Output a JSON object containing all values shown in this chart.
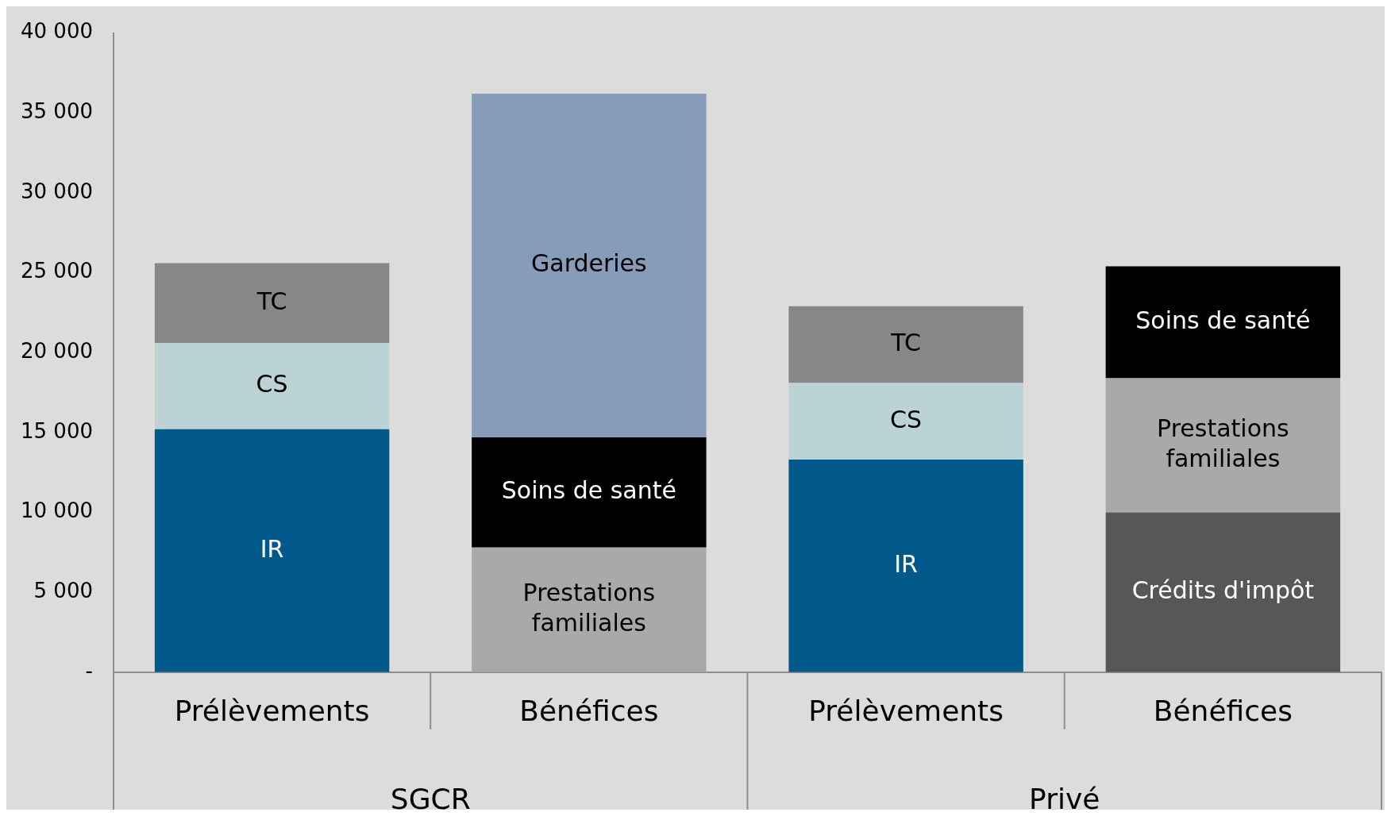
{
  "chart_data": {
    "type": "bar",
    "stacked": true,
    "categories": [
      "Prélèvements",
      "Bénéfices",
      "Prélèvements",
      "Bénéfices"
    ],
    "series": [
      {
        "name": "IR",
        "color": "#00598a",
        "values": [
          15200,
          null,
          13300,
          null
        ]
      },
      {
        "name": "CS",
        "color": "#bcd3d6",
        "values": [
          5400,
          null,
          4800,
          null
        ]
      },
      {
        "name": "TC",
        "color": "#878787",
        "values": [
          5000,
          null,
          4800,
          null
        ]
      },
      {
        "name": "Crédits d'impôt",
        "color": "#575757",
        "values": [
          null,
          null,
          null,
          10000
        ]
      },
      {
        "name": "Prestations familiales",
        "color": "#a9a9a9",
        "values": [
          null,
          7800,
          null,
          8400
        ]
      },
      {
        "name": "Soins de santé",
        "color": "#000000",
        "values": [
          null,
          6900,
          null,
          7000
        ]
      },
      {
        "name": "Garderies",
        "color": "#869cb8",
        "values": [
          null,
          21500,
          null,
          null
        ]
      }
    ],
    "ylim": [
      0,
      40000
    ],
    "yticks": [
      {
        "value": 0,
        "label": "-"
      },
      {
        "value": 5000,
        "label": "5 000"
      },
      {
        "value": 10000,
        "label": "10 000"
      },
      {
        "value": 15000,
        "label": "15 000"
      },
      {
        "value": 20000,
        "label": "20 000"
      },
      {
        "value": 25000,
        "label": "25 000"
      },
      {
        "value": 30000,
        "label": "30 000"
      },
      {
        "value": 35000,
        "label": "35 000"
      },
      {
        "value": 40000,
        "label": "40 000"
      }
    ],
    "annotations": [
      "SGCR",
      "Privé"
    ],
    "grid": false,
    "legend": false
  }
}
